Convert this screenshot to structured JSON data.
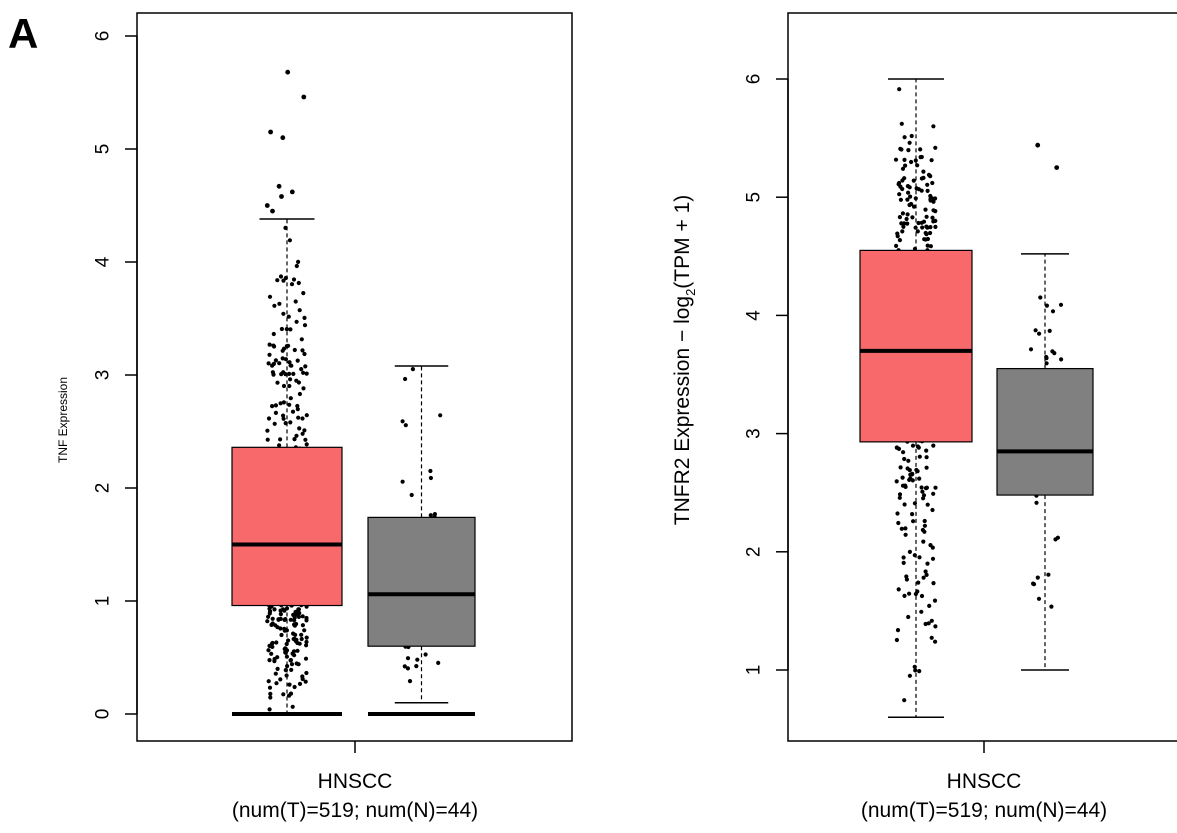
{
  "figure": {
    "panel_label": "A"
  },
  "colors": {
    "tumor": "#f8696b",
    "normal": "#808080",
    "points": "#000000"
  },
  "chart_data": [
    {
      "type": "box",
      "ylabel": "TNF Expression",
      "category": "HNSCC",
      "category_sub": "(num(T)=519; num(N)=44)",
      "y_ticks": [
        0,
        1,
        2,
        3,
        4,
        5,
        6
      ],
      "ylim": [
        -0.2,
        6.1
      ],
      "series": [
        {
          "name": "T",
          "n": 519,
          "min": 0.0,
          "q1": 0.96,
          "median": 1.5,
          "q3": 2.36,
          "max": 4.38,
          "outliers": [
            4.45,
            4.5,
            4.58,
            4.62,
            4.67,
            5.1,
            5.15,
            5.46,
            5.68
          ]
        },
        {
          "name": "N",
          "n": 44,
          "min": 0.1,
          "q1": 0.6,
          "median": 1.06,
          "q3": 1.74,
          "max": 3.08,
          "outliers": []
        }
      ]
    },
    {
      "type": "box",
      "ylabel": "TNFR2 Expression − log",
      "ylabel_sub": "2",
      "ylabel_tail": "(TPM + 1)",
      "category": "HNSCC",
      "category_sub": "(num(T)=519; num(N)=44)",
      "y_ticks": [
        1,
        2,
        3,
        4,
        5,
        6
      ],
      "ylim": [
        0.45,
        6.5
      ],
      "series": [
        {
          "name": "T",
          "n": 519,
          "min": 0.6,
          "q1": 2.93,
          "median": 3.7,
          "q3": 4.55,
          "max": 6.0,
          "outliers": []
        },
        {
          "name": "N",
          "n": 44,
          "min": 1.0,
          "q1": 2.48,
          "median": 2.85,
          "q3": 3.55,
          "max": 4.52,
          "outliers": [
            5.25,
            5.44
          ]
        }
      ]
    }
  ]
}
